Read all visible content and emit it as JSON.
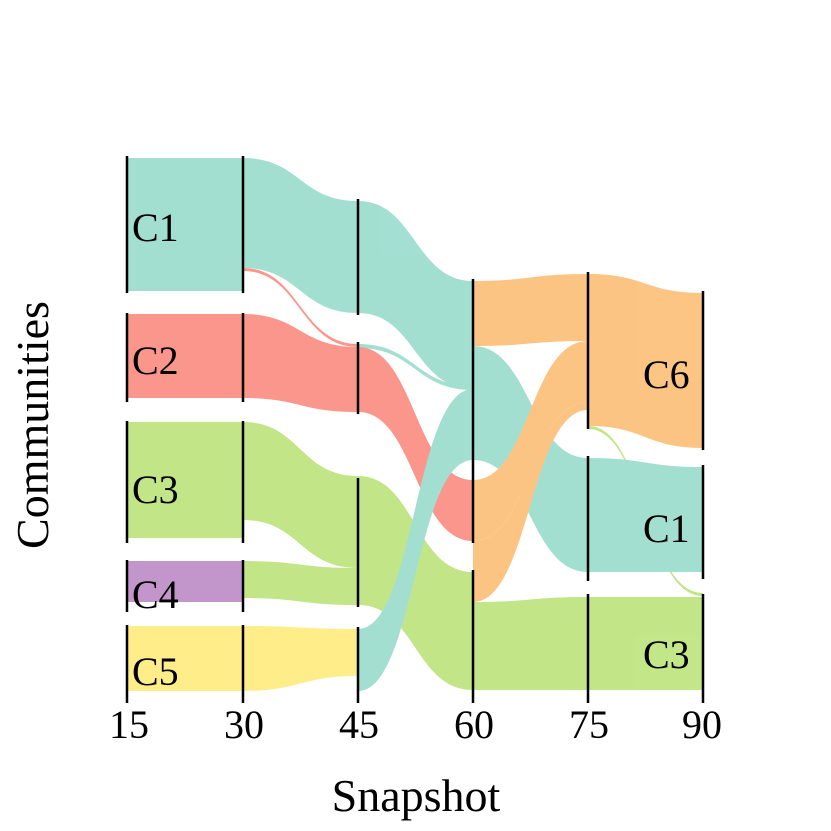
{
  "chart_data": {
    "type": "sankey",
    "xlabel": "Snapshot",
    "ylabel": "Communities",
    "snapshots": [
      15,
      30,
      45,
      60,
      75,
      90
    ],
    "colors": {
      "C1": "#8fd8c8",
      "C2": "#fa8072",
      "C3": "#b5e06e",
      "C4": "#b57ec0",
      "C5": "#ffea70",
      "C6": "#fbb869"
    },
    "community_labels": [
      "C1",
      "C2",
      "C3",
      "C4",
      "C5",
      "C6",
      "C1",
      "C3"
    ]
  }
}
